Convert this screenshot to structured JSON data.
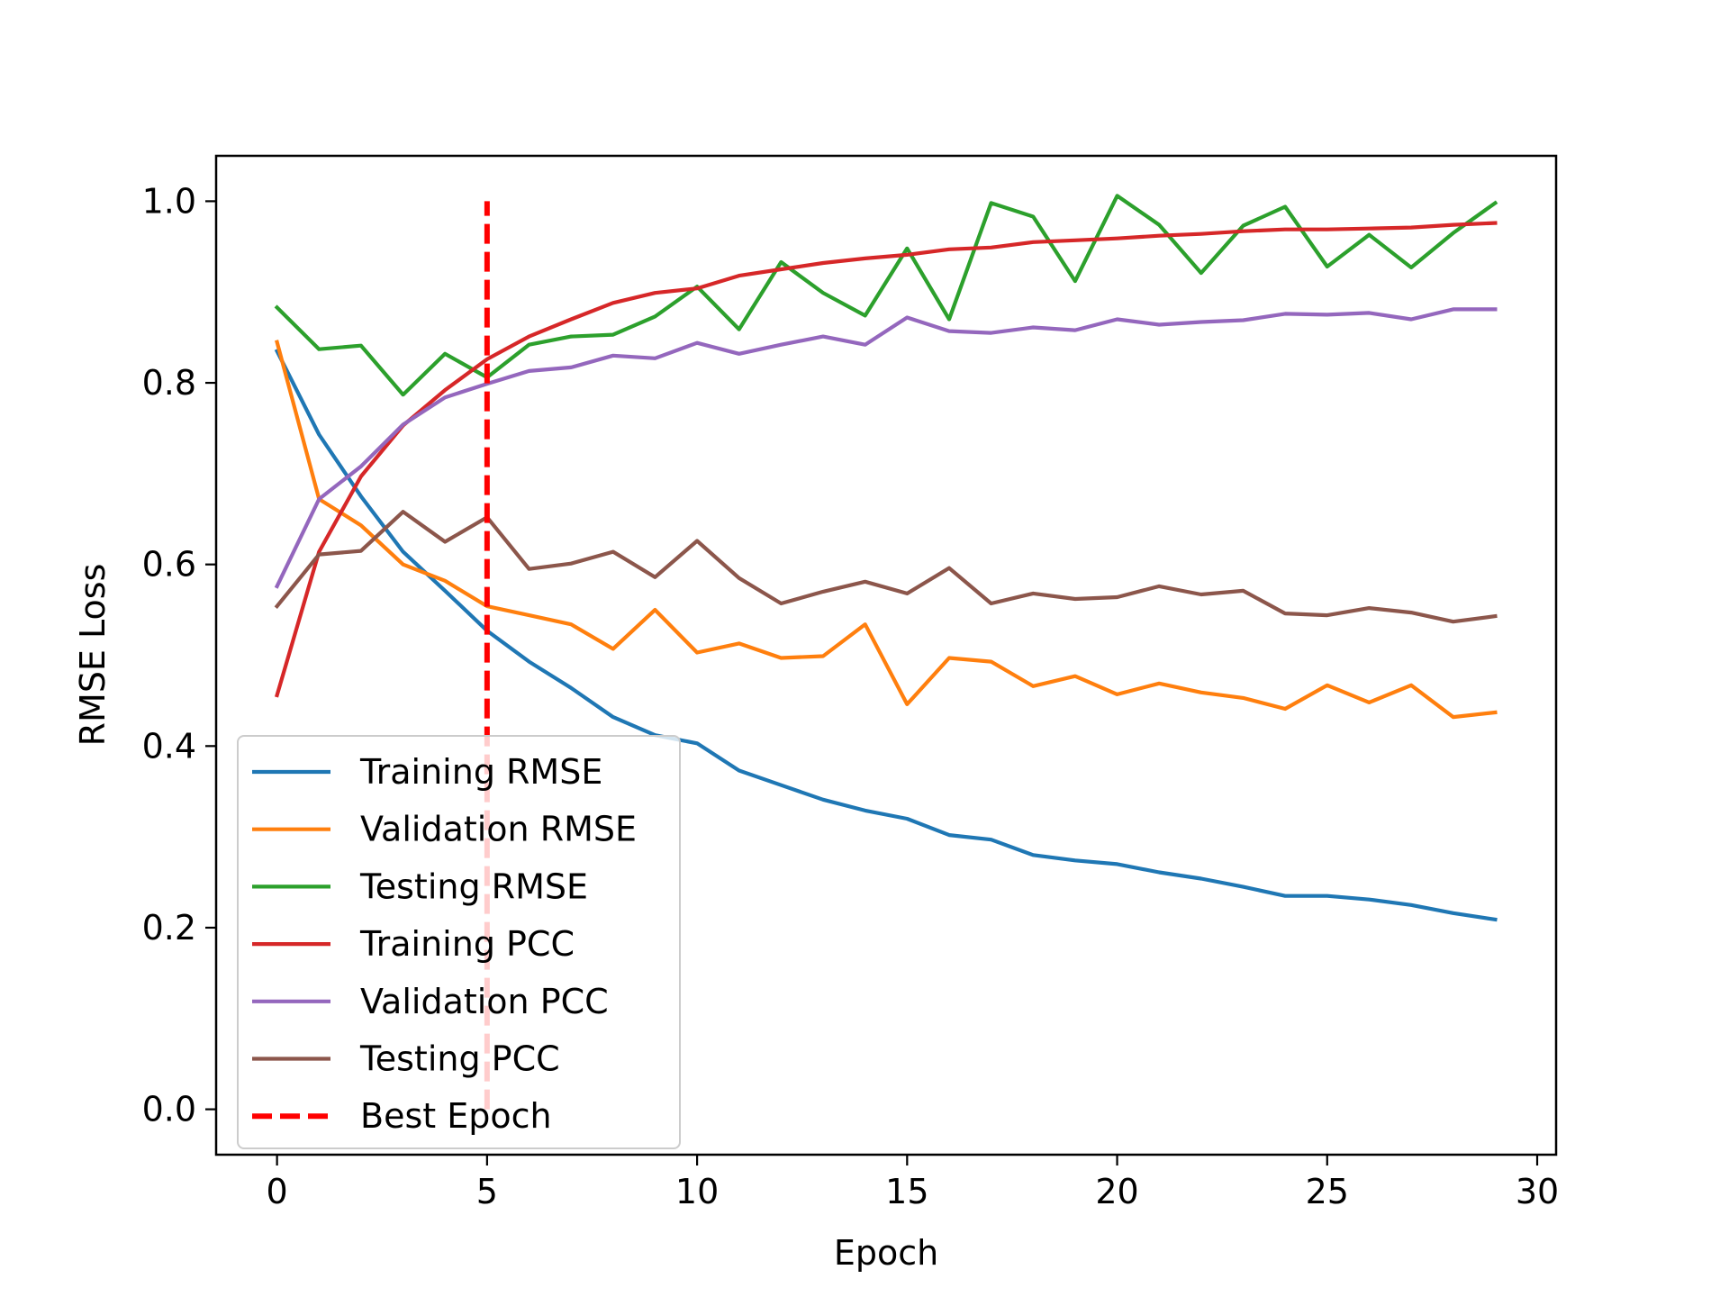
{
  "chart_data": {
    "type": "line",
    "title": "",
    "xlabel": "Epoch",
    "ylabel": "RMSE Loss",
    "xlim": [
      -1.45,
      30.45
    ],
    "ylim": [
      -0.05,
      1.05
    ],
    "xticks": [
      0,
      5,
      10,
      15,
      20,
      25,
      30
    ],
    "xtick_labels": [
      "0",
      "5",
      "10",
      "15",
      "20",
      "25",
      "30"
    ],
    "yticks": [
      0.0,
      0.2,
      0.4,
      0.6,
      0.8,
      1.0
    ],
    "ytick_labels": [
      "0.0",
      "0.2",
      "0.4",
      "0.6",
      "0.8",
      "1.0"
    ],
    "grid": false,
    "legend_position": "lower-left",
    "x": [
      0,
      1,
      2,
      3,
      4,
      5,
      6,
      7,
      8,
      9,
      10,
      11,
      12,
      13,
      14,
      15,
      16,
      17,
      18,
      19,
      20,
      21,
      22,
      23,
      24,
      25,
      26,
      27,
      28,
      29
    ],
    "series": [
      {
        "name": "Training RMSE",
        "color": "#1f77b4",
        "values": [
          0.835,
          0.743,
          0.675,
          0.614,
          0.571,
          0.527,
          0.493,
          0.464,
          0.432,
          0.412,
          0.403,
          0.373,
          0.357,
          0.341,
          0.329,
          0.32,
          0.302,
          0.297,
          0.28,
          0.274,
          0.27,
          0.261,
          0.254,
          0.245,
          0.235,
          0.235,
          0.231,
          0.225,
          0.216,
          0.209
        ]
      },
      {
        "name": "Validation RMSE",
        "color": "#ff7f0e",
        "values": [
          0.845,
          0.672,
          0.643,
          0.6,
          0.582,
          0.554,
          0.544,
          0.534,
          0.507,
          0.55,
          0.503,
          0.513,
          0.497,
          0.499,
          0.534,
          0.446,
          0.497,
          0.493,
          0.466,
          0.477,
          0.457,
          0.469,
          0.459,
          0.453,
          0.441,
          0.467,
          0.448,
          0.467,
          0.432,
          0.437
        ]
      },
      {
        "name": "Testing RMSE",
        "color": "#2ca02c",
        "values": [
          0.883,
          0.837,
          0.841,
          0.787,
          0.832,
          0.806,
          0.842,
          0.851,
          0.853,
          0.873,
          0.906,
          0.859,
          0.933,
          0.899,
          0.874,
          0.948,
          0.87,
          0.998,
          0.983,
          0.912,
          1.006,
          0.974,
          0.921,
          0.973,
          0.994,
          0.928,
          0.963,
          0.927,
          0.965,
          0.998
        ]
      },
      {
        "name": "Training PCC",
        "color": "#d62728",
        "values": [
          0.456,
          0.614,
          0.697,
          0.753,
          0.792,
          0.826,
          0.851,
          0.87,
          0.888,
          0.899,
          0.904,
          0.918,
          0.925,
          0.932,
          0.937,
          0.941,
          0.947,
          0.949,
          0.955,
          0.957,
          0.959,
          0.962,
          0.964,
          0.967,
          0.969,
          0.969,
          0.97,
          0.971,
          0.974,
          0.976
        ]
      },
      {
        "name": "Validation PCC",
        "color": "#9467bd",
        "values": [
          0.576,
          0.672,
          0.708,
          0.754,
          0.784,
          0.799,
          0.813,
          0.817,
          0.83,
          0.827,
          0.844,
          0.832,
          0.842,
          0.851,
          0.842,
          0.872,
          0.857,
          0.855,
          0.861,
          0.858,
          0.87,
          0.864,
          0.867,
          0.869,
          0.876,
          0.875,
          0.877,
          0.87,
          0.881,
          0.881
        ]
      },
      {
        "name": "Testing PCC",
        "color": "#8c564b",
        "values": [
          0.554,
          0.611,
          0.615,
          0.658,
          0.625,
          0.652,
          0.595,
          0.601,
          0.614,
          0.586,
          0.626,
          0.585,
          0.557,
          0.57,
          0.581,
          0.568,
          0.596,
          0.557,
          0.568,
          0.562,
          0.564,
          0.576,
          0.567,
          0.571,
          0.546,
          0.544,
          0.552,
          0.547,
          0.537,
          0.543
        ]
      }
    ],
    "vlines": [
      {
        "name": "Best Epoch",
        "x": 5,
        "ymin": 0.0,
        "ymax": 1.0,
        "color": "#ff0000",
        "style": "dashed"
      }
    ]
  }
}
